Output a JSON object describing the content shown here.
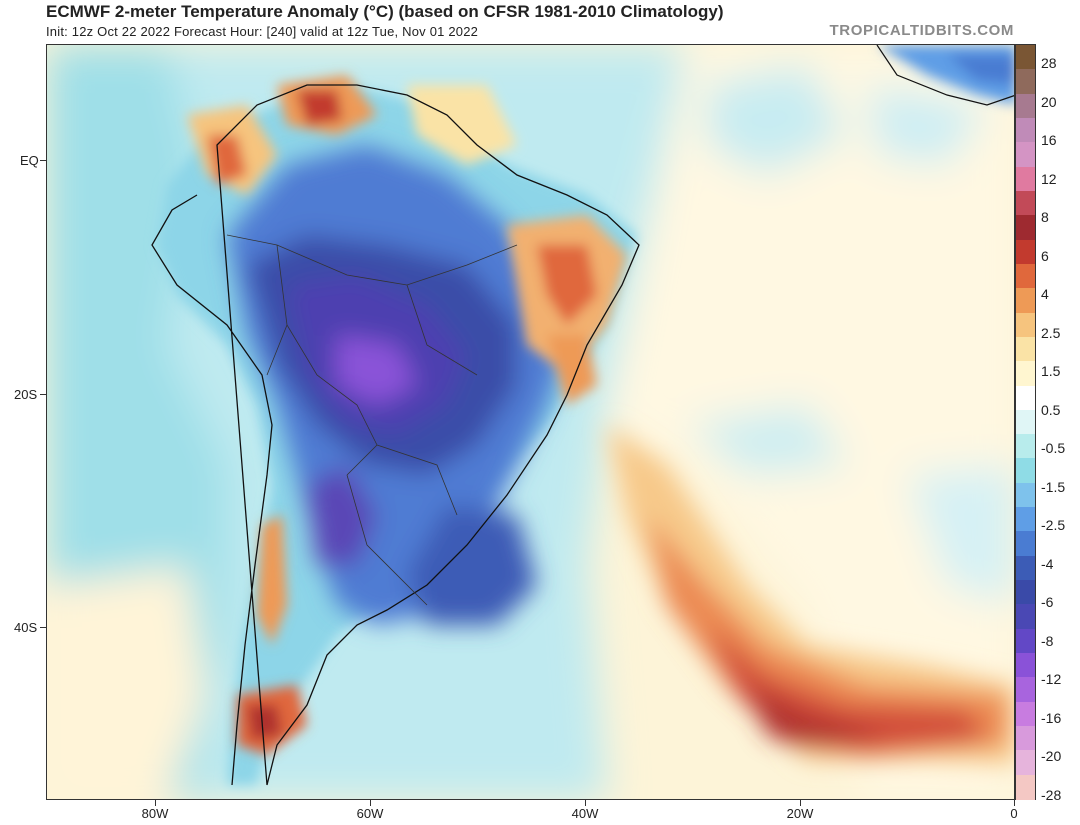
{
  "header": {
    "title": "ECMWF 2-meter Temperature Anomaly (°C) (based on CFSR 1981-2010 Climatology)",
    "subtitle": "Init: 12z Oct 22 2022   Forecast Hour: [240]   valid at 12z Tue, Nov 01 2022",
    "credit": "TROPICALTIDBITS.COM"
  },
  "map": {
    "region": "South America and South Atlantic",
    "lat_labels": [
      "EQ",
      "20S",
      "40S"
    ],
    "lon_labels": [
      "80W",
      "60W",
      "40W",
      "20W",
      "0"
    ]
  },
  "colorbar": {
    "unit": "°C",
    "labels": [
      "28",
      "20",
      "16",
      "12",
      "8",
      "6",
      "4",
      "2.5",
      "1.5",
      "0.5",
      "-0.5",
      "-1.5",
      "-2.5",
      "-4",
      "-6",
      "-8",
      "-12",
      "-16",
      "-20",
      "-28"
    ],
    "colors": [
      "#7a5634",
      "#8f6a5c",
      "#a77a90",
      "#c08bb8",
      "#d494c4",
      "#e07aa0",
      "#c24a58",
      "#9e2a30",
      "#c23a2e",
      "#e0683c",
      "#ee9a56",
      "#f6c47e",
      "#fae3a6",
      "#fff6d0",
      "#ffffff",
      "#e0f6f6",
      "#b8ecec",
      "#8fdce6",
      "#7ec2ec",
      "#5f9ee6",
      "#4a7cd2",
      "#3c5cb6",
      "#3a4aa8",
      "#4a48b4",
      "#6248c6",
      "#8a52d8",
      "#a864de",
      "#c87ce0",
      "#d89adc",
      "#e6b4dc",
      "#f4c8c4"
    ]
  }
}
